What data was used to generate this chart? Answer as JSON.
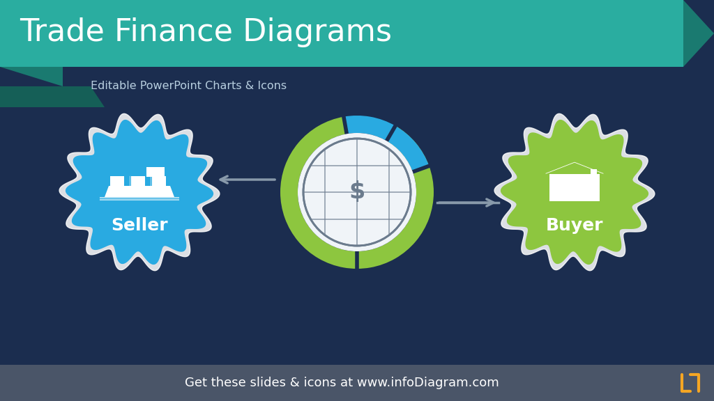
{
  "bg_color": "#1b2d4f",
  "title": "Trade Finance Diagrams",
  "subtitle": "Editable PowerPoint Charts & Icons",
  "footer_text": "Get these slides & icons at www.infoDiagram.com",
  "footer_bg": "#4a5568",
  "banner_color": "#2aada0",
  "banner_dark": "#1a7a70",
  "banner_darker": "#155f57",
  "title_color": "#ffffff",
  "subtitle_color": "#b8cfe0",
  "footer_color": "#ffffff",
  "seller_label": "Seller",
  "buyer_label": "Buyer",
  "seller_badge_color": "#29aae1",
  "seller_badge_border": "#5bc8f0",
  "buyer_badge_color": "#8dc63f",
  "buyer_badge_border": "#aee05a",
  "center_green": "#8dc63f",
  "center_blue": "#29aae1",
  "center_white": "#f0f4f8",
  "globe_color": "#6b7b8d",
  "arrow_color": "#8899aa",
  "orange_icon": "#f5a623",
  "white": "#ffffff"
}
